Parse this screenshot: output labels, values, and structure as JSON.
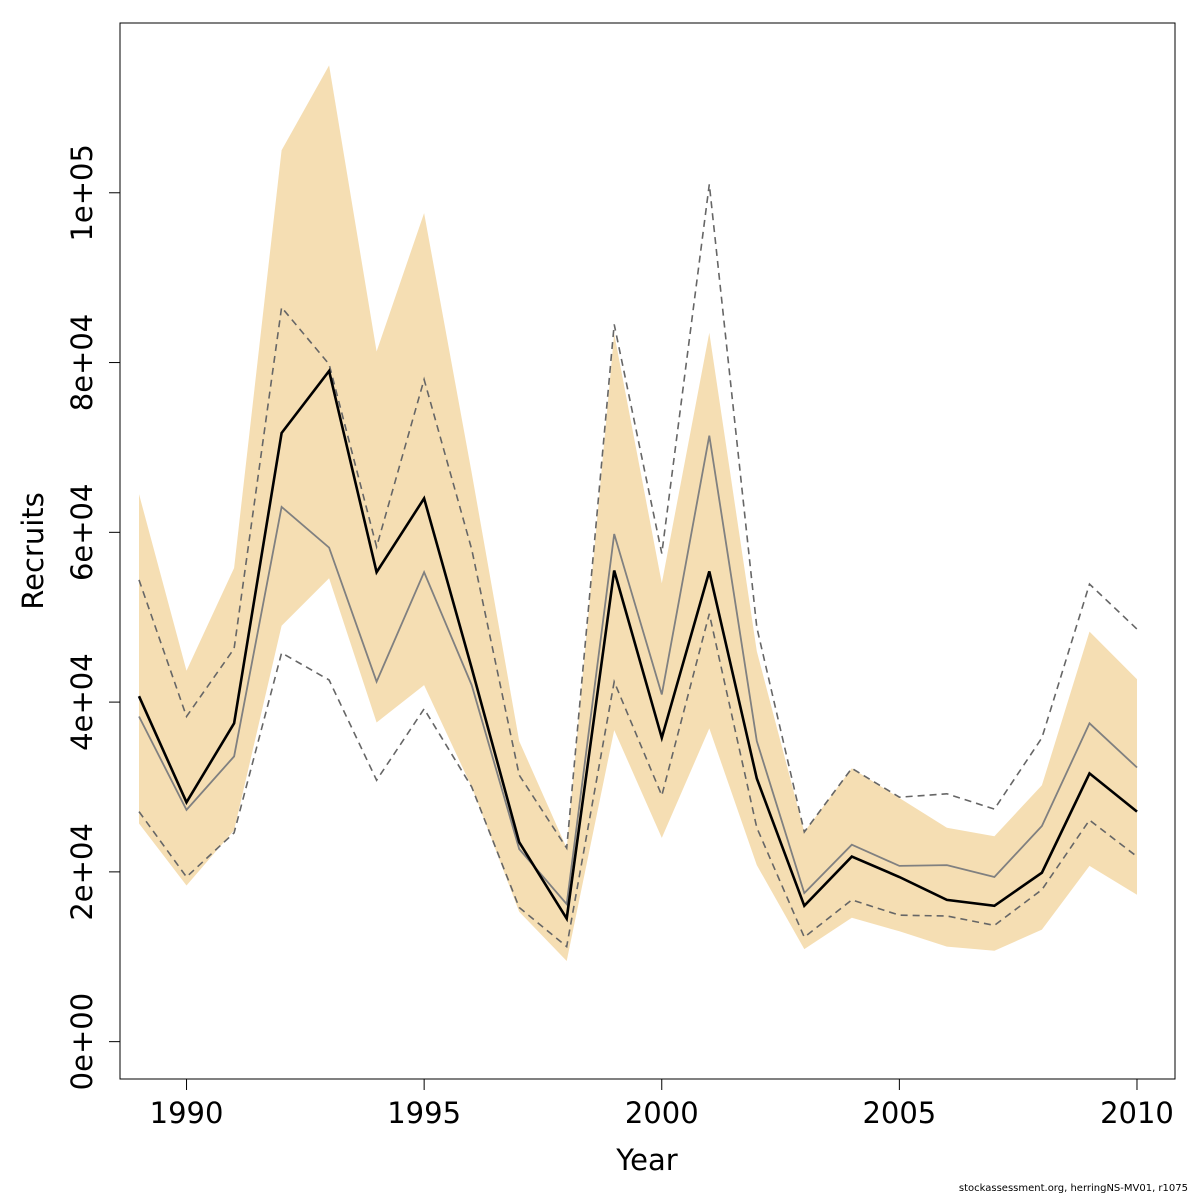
{
  "footer": "stockassessment.org, herringNS-MV01, r1075",
  "colors": {
    "band": "#F5DEB3",
    "estimate": "#000000",
    "alt_estimate": "#808080",
    "alt_bounds": "#666666",
    "axis": "#000000"
  },
  "chart_data": {
    "type": "line",
    "title": "",
    "xlabel": "Year",
    "ylabel": "Recruits",
    "xlim": [
      1988.6,
      2010.8
    ],
    "ylim": [
      -4400,
      120000
    ],
    "x_ticks": [
      1990,
      1995,
      2000,
      2005,
      2010
    ],
    "x_tick_labels": [
      "1990",
      "1995",
      "2000",
      "2005",
      "2010"
    ],
    "y_ticks": [
      0,
      20000,
      40000,
      60000,
      80000,
      100000
    ],
    "y_tick_labels": [
      "0e+00",
      "2e+04",
      "4e+04",
      "6e+04",
      "8e+04",
      "1e+05"
    ],
    "grid": false,
    "legend": "none",
    "x": [
      1989,
      1990,
      1991,
      1992,
      1993,
      1994,
      1995,
      1996,
      1997,
      1998,
      1999,
      2000,
      2001,
      2002,
      2003,
      2004,
      2005,
      2006,
      2007,
      2008,
      2009,
      2010
    ],
    "band_upper": [
      64500,
      43700,
      55800,
      105000,
      115000,
      81300,
      97600,
      67000,
      35400,
      22800,
      83400,
      54000,
      83500,
      46000,
      24700,
      32200,
      28700,
      25200,
      24200,
      30200,
      48300,
      42700
    ],
    "band_lower": [
      25700,
      18400,
      24900,
      49000,
      54600,
      37600,
      42000,
      30000,
      15300,
      9500,
      36700,
      24000,
      36900,
      20800,
      10900,
      14600,
      13000,
      11200,
      10700,
      13200,
      20700,
      17300
    ],
    "series": [
      {
        "values": [
          40700,
          28200,
          37500,
          71700,
          79000,
          55300,
          64000,
          44000,
          23500,
          14500,
          55500,
          35800,
          55400,
          31000,
          16000,
          21800,
          19400,
          16700,
          16000,
          19900,
          31600,
          27100
        ]
      },
      {
        "values": [
          38300,
          27300,
          33600,
          63000,
          58200,
          42400,
          55300,
          42000,
          22700,
          16200,
          59800,
          40900,
          71400,
          35400,
          17500,
          23200,
          20700,
          20800,
          19400,
          25400,
          37500,
          32300
        ]
      },
      {
        "values": [
          54400,
          38300,
          46300,
          86500,
          79800,
          58300,
          78000,
          58000,
          31400,
          22800,
          84500,
          57500,
          101000,
          48800,
          24700,
          32200,
          28800,
          29200,
          27400,
          35800,
          53900,
          48600
        ]
      },
      {
        "values": [
          27100,
          19400,
          24600,
          45800,
          42600,
          30800,
          39200,
          30000,
          15800,
          11200,
          42400,
          29000,
          50400,
          25200,
          12300,
          16700,
          14900,
          14800,
          13700,
          17900,
          26100,
          21800
        ]
      }
    ]
  }
}
